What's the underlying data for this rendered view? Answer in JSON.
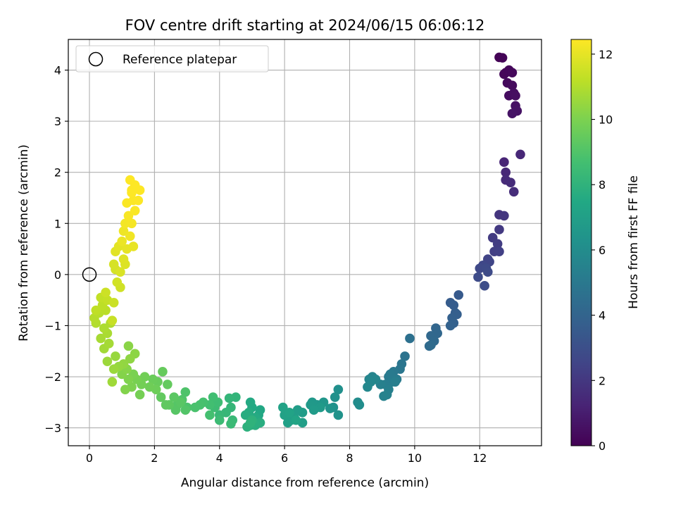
{
  "chart_data": {
    "type": "scatter",
    "title": "FOV centre drift starting at 2024/06/15 06:06:12",
    "xlabel": "Angular distance from reference (arcmin)",
    "ylabel": "Rotation from reference (arcmin)",
    "xlim": [
      -0.65,
      13.9
    ],
    "ylim": [
      -3.35,
      4.6
    ],
    "xticks": [
      0,
      2,
      4,
      6,
      8,
      10,
      12
    ],
    "yticks": [
      -3,
      -2,
      -1,
      0,
      1,
      2,
      3,
      4
    ],
    "grid": true,
    "legend": {
      "position": "top-left",
      "entries": [
        "Reference platepar"
      ]
    },
    "reference_point": {
      "x": 0,
      "y": 0,
      "label": "Reference platepar"
    },
    "colorbar": {
      "label": "Hours from first FF file",
      "range": [
        0,
        12.45
      ],
      "ticks": [
        0,
        2,
        4,
        6,
        8,
        10,
        12
      ],
      "colormap": "viridis"
    },
    "points": [
      [
        12.6,
        4.25,
        0.05
      ],
      [
        12.7,
        4.24,
        0.1
      ],
      [
        12.8,
        3.95,
        0.15
      ],
      [
        12.75,
        3.92,
        0.2
      ],
      [
        12.9,
        4.0,
        0.22
      ],
      [
        13.0,
        3.95,
        0.25
      ],
      [
        12.85,
        3.75,
        0.3
      ],
      [
        13.0,
        3.7,
        0.35
      ],
      [
        12.9,
        3.5,
        0.4
      ],
      [
        13.05,
        3.55,
        0.45
      ],
      [
        13.1,
        3.5,
        0.5
      ],
      [
        13.1,
        3.3,
        0.55
      ],
      [
        13.15,
        3.2,
        0.6
      ],
      [
        13.0,
        3.15,
        0.65
      ],
      [
        12.75,
        2.2,
        1.3
      ],
      [
        13.25,
        2.35,
        1.35
      ],
      [
        12.8,
        2.0,
        1.4
      ],
      [
        12.8,
        1.85,
        1.5
      ],
      [
        12.95,
        1.8,
        1.55
      ],
      [
        13.05,
        1.62,
        1.6
      ],
      [
        12.6,
        1.17,
        1.9
      ],
      [
        12.75,
        1.15,
        1.95
      ],
      [
        12.6,
        0.88,
        2.05
      ],
      [
        12.4,
        0.72,
        2.15
      ],
      [
        12.55,
        0.6,
        2.2
      ],
      [
        12.45,
        0.45,
        2.3
      ],
      [
        12.6,
        0.45,
        2.35
      ],
      [
        12.25,
        0.3,
        2.5
      ],
      [
        12.3,
        0.25,
        2.55
      ],
      [
        12.1,
        0.18,
        2.65
      ],
      [
        12.0,
        0.12,
        2.7
      ],
      [
        12.2,
        0.12,
        2.75
      ],
      [
        12.25,
        0.05,
        2.8
      ],
      [
        11.95,
        -0.05,
        2.85
      ],
      [
        12.15,
        -0.22,
        2.9
      ],
      [
        11.35,
        -0.4,
        3.5
      ],
      [
        11.1,
        -0.55,
        3.6
      ],
      [
        11.2,
        -0.6,
        3.65
      ],
      [
        11.25,
        -0.75,
        3.7
      ],
      [
        11.3,
        -0.78,
        3.75
      ],
      [
        11.15,
        -0.85,
        3.8
      ],
      [
        11.2,
        -0.95,
        3.85
      ],
      [
        11.1,
        -1.0,
        3.9
      ],
      [
        10.65,
        -1.05,
        4.1
      ],
      [
        10.7,
        -1.15,
        4.15
      ],
      [
        10.5,
        -1.2,
        4.2
      ],
      [
        10.6,
        -1.3,
        4.25
      ],
      [
        10.45,
        -1.4,
        4.3
      ],
      [
        10.5,
        -1.38,
        4.35
      ],
      [
        9.85,
        -1.25,
        4.6
      ],
      [
        9.7,
        -1.6,
        4.75
      ],
      [
        9.6,
        -1.75,
        4.85
      ],
      [
        9.55,
        -1.85,
        4.9
      ],
      [
        9.35,
        -1.9,
        5.0
      ],
      [
        9.2,
        -2.0,
        5.05
      ],
      [
        9.25,
        -1.95,
        5.1
      ],
      [
        9.45,
        -2.05,
        5.15
      ],
      [
        9.3,
        -2.1,
        5.2
      ],
      [
        9.1,
        -2.15,
        5.25
      ],
      [
        9.4,
        -2.1,
        5.3
      ],
      [
        9.2,
        -2.25,
        5.35
      ],
      [
        8.95,
        -2.15,
        5.4
      ],
      [
        9.15,
        -2.35,
        5.45
      ],
      [
        9.05,
        -2.38,
        5.5
      ],
      [
        8.7,
        -2.0,
        5.6
      ],
      [
        8.6,
        -2.05,
        5.65
      ],
      [
        8.8,
        -2.05,
        5.7
      ],
      [
        8.65,
        -2.1,
        5.75
      ],
      [
        8.55,
        -2.2,
        5.8
      ],
      [
        8.25,
        -2.5,
        6.0
      ],
      [
        8.3,
        -2.55,
        6.05
      ],
      [
        7.65,
        -2.25,
        6.2
      ],
      [
        7.55,
        -2.4,
        6.25
      ],
      [
        7.5,
        -2.6,
        6.3
      ],
      [
        7.65,
        -2.75,
        6.35
      ],
      [
        7.4,
        -2.62,
        6.4
      ],
      [
        7.2,
        -2.5,
        6.5
      ],
      [
        7.0,
        -2.55,
        6.55
      ],
      [
        6.85,
        -2.5,
        6.6
      ],
      [
        6.8,
        -2.55,
        6.65
      ],
      [
        7.1,
        -2.6,
        6.7
      ],
      [
        6.9,
        -2.65,
        6.75
      ],
      [
        6.55,
        -2.7,
        6.8
      ],
      [
        6.4,
        -2.65,
        6.85
      ],
      [
        6.3,
        -2.8,
        6.9
      ],
      [
        6.55,
        -2.9,
        6.95
      ],
      [
        6.2,
        -2.85,
        7.0
      ],
      [
        6.1,
        -2.9,
        7.05
      ],
      [
        6.0,
        -2.75,
        7.1
      ],
      [
        5.95,
        -2.6,
        7.15
      ],
      [
        6.15,
        -2.7,
        7.2
      ],
      [
        6.35,
        -2.85,
        7.25
      ],
      [
        5.25,
        -2.65,
        7.4
      ],
      [
        5.2,
        -2.75,
        7.45
      ],
      [
        5.0,
        -2.6,
        7.5
      ],
      [
        4.95,
        -2.5,
        7.55
      ],
      [
        5.1,
        -2.8,
        7.6
      ],
      [
        4.9,
        -2.7,
        7.65
      ],
      [
        4.8,
        -2.75,
        7.7
      ],
      [
        5.25,
        -2.9,
        7.75
      ],
      [
        5.1,
        -2.95,
        7.8
      ],
      [
        4.95,
        -2.95,
        7.85
      ],
      [
        4.85,
        -2.98,
        7.9
      ],
      [
        5.0,
        -2.85,
        7.95
      ],
      [
        4.95,
        -2.9,
        8.0
      ],
      [
        4.5,
        -2.4,
        8.1
      ],
      [
        4.3,
        -2.42,
        8.15
      ],
      [
        4.35,
        -2.6,
        8.2
      ],
      [
        4.2,
        -2.7,
        8.25
      ],
      [
        4.0,
        -2.75,
        8.3
      ],
      [
        4.4,
        -2.85,
        8.35
      ],
      [
        4.35,
        -2.92,
        8.4
      ],
      [
        4.0,
        -2.85,
        8.45
      ],
      [
        3.85,
        -2.6,
        8.5
      ],
      [
        3.95,
        -2.5,
        8.55
      ],
      [
        3.8,
        -2.4,
        8.6
      ],
      [
        3.7,
        -2.55,
        8.65
      ],
      [
        3.7,
        -2.75,
        8.7
      ],
      [
        3.5,
        -2.5,
        8.75
      ],
      [
        3.4,
        -2.55,
        8.8
      ],
      [
        3.25,
        -2.6,
        8.85
      ],
      [
        3.0,
        -2.6,
        8.9
      ],
      [
        2.95,
        -2.3,
        8.95
      ],
      [
        2.85,
        -2.45,
        9.0
      ],
      [
        2.95,
        -2.65,
        9.05
      ],
      [
        2.7,
        -2.55,
        9.1
      ],
      [
        2.65,
        -2.65,
        9.15
      ],
      [
        2.8,
        -2.5,
        9.2
      ],
      [
        2.6,
        -2.4,
        9.25
      ],
      [
        2.45,
        -2.55,
        9.3
      ],
      [
        2.35,
        -2.55,
        9.35
      ],
      [
        2.2,
        -2.4,
        9.4
      ],
      [
        2.4,
        -2.15,
        9.45
      ],
      [
        2.25,
        -1.9,
        9.5
      ],
      [
        2.1,
        -2.1,
        9.55
      ],
      [
        1.95,
        -2.05,
        9.6
      ],
      [
        2.05,
        -2.25,
        9.65
      ],
      [
        1.85,
        -2.2,
        9.7
      ],
      [
        1.7,
        -2.0,
        9.75
      ],
      [
        1.6,
        -2.15,
        9.8
      ],
      [
        1.55,
        -2.35,
        9.85
      ],
      [
        1.45,
        -2.05,
        9.9
      ],
      [
        1.35,
        -1.95,
        9.95
      ],
      [
        1.3,
        -2.2,
        10.0
      ],
      [
        1.2,
        -2.05,
        10.05
      ],
      [
        1.1,
        -2.25,
        10.1
      ],
      [
        1.0,
        -1.95,
        10.15
      ],
      [
        1.15,
        -1.85,
        10.2
      ],
      [
        1.2,
        -1.4,
        10.25
      ],
      [
        1.4,
        -1.55,
        10.3
      ],
      [
        1.25,
        -1.65,
        10.35
      ],
      [
        1.05,
        -1.75,
        10.4
      ],
      [
        0.9,
        -1.8,
        10.45
      ],
      [
        0.8,
        -1.6,
        10.5
      ],
      [
        0.75,
        -1.85,
        10.55
      ],
      [
        0.55,
        -1.7,
        10.6
      ],
      [
        0.7,
        -2.1,
        10.65
      ],
      [
        0.45,
        -1.45,
        10.7
      ],
      [
        0.6,
        -1.35,
        10.75
      ],
      [
        0.35,
        -1.25,
        10.8
      ],
      [
        0.55,
        -1.15,
        10.85
      ],
      [
        0.45,
        -1.05,
        10.9
      ],
      [
        0.65,
        -0.95,
        10.95
      ],
      [
        0.2,
        -0.95,
        11.0
      ],
      [
        0.15,
        -0.85,
        11.05
      ],
      [
        0.3,
        -0.75,
        11.1
      ],
      [
        0.5,
        -0.7,
        11.15
      ],
      [
        0.4,
        -0.6,
        11.2
      ],
      [
        0.2,
        -0.7,
        11.25
      ],
      [
        0.35,
        -0.45,
        11.3
      ],
      [
        0.55,
        -0.5,
        11.35
      ],
      [
        0.7,
        -0.9,
        11.4
      ],
      [
        0.75,
        -0.55,
        11.45
      ],
      [
        0.5,
        -0.35,
        11.5
      ],
      [
        0.95,
        -0.25,
        11.55
      ],
      [
        0.85,
        -0.15,
        11.6
      ],
      [
        0.8,
        0.1,
        11.65
      ],
      [
        0.75,
        0.2,
        11.7
      ],
      [
        0.95,
        0.05,
        11.75
      ],
      [
        1.1,
        0.2,
        11.8
      ],
      [
        1.05,
        0.3,
        11.85
      ],
      [
        0.8,
        0.45,
        11.9
      ],
      [
        0.9,
        0.55,
        11.95
      ],
      [
        1.15,
        0.5,
        12.0
      ],
      [
        1.35,
        0.55,
        12.05
      ],
      [
        1.0,
        0.65,
        12.1
      ],
      [
        1.05,
        0.85,
        12.15
      ],
      [
        1.25,
        0.75,
        12.2
      ],
      [
        1.1,
        1.0,
        12.25
      ],
      [
        1.3,
        1.0,
        12.3
      ],
      [
        1.2,
        1.15,
        12.35
      ],
      [
        1.4,
        1.25,
        12.38
      ],
      [
        1.15,
        1.4,
        12.4
      ],
      [
        1.35,
        1.45,
        12.42
      ],
      [
        1.5,
        1.45,
        12.44
      ],
      [
        1.3,
        1.65,
        12.45
      ],
      [
        1.55,
        1.65,
        12.45
      ],
      [
        1.4,
        1.75,
        12.45
      ],
      [
        1.25,
        1.85,
        12.45
      ],
      [
        1.3,
        1.6,
        12.45
      ]
    ]
  }
}
